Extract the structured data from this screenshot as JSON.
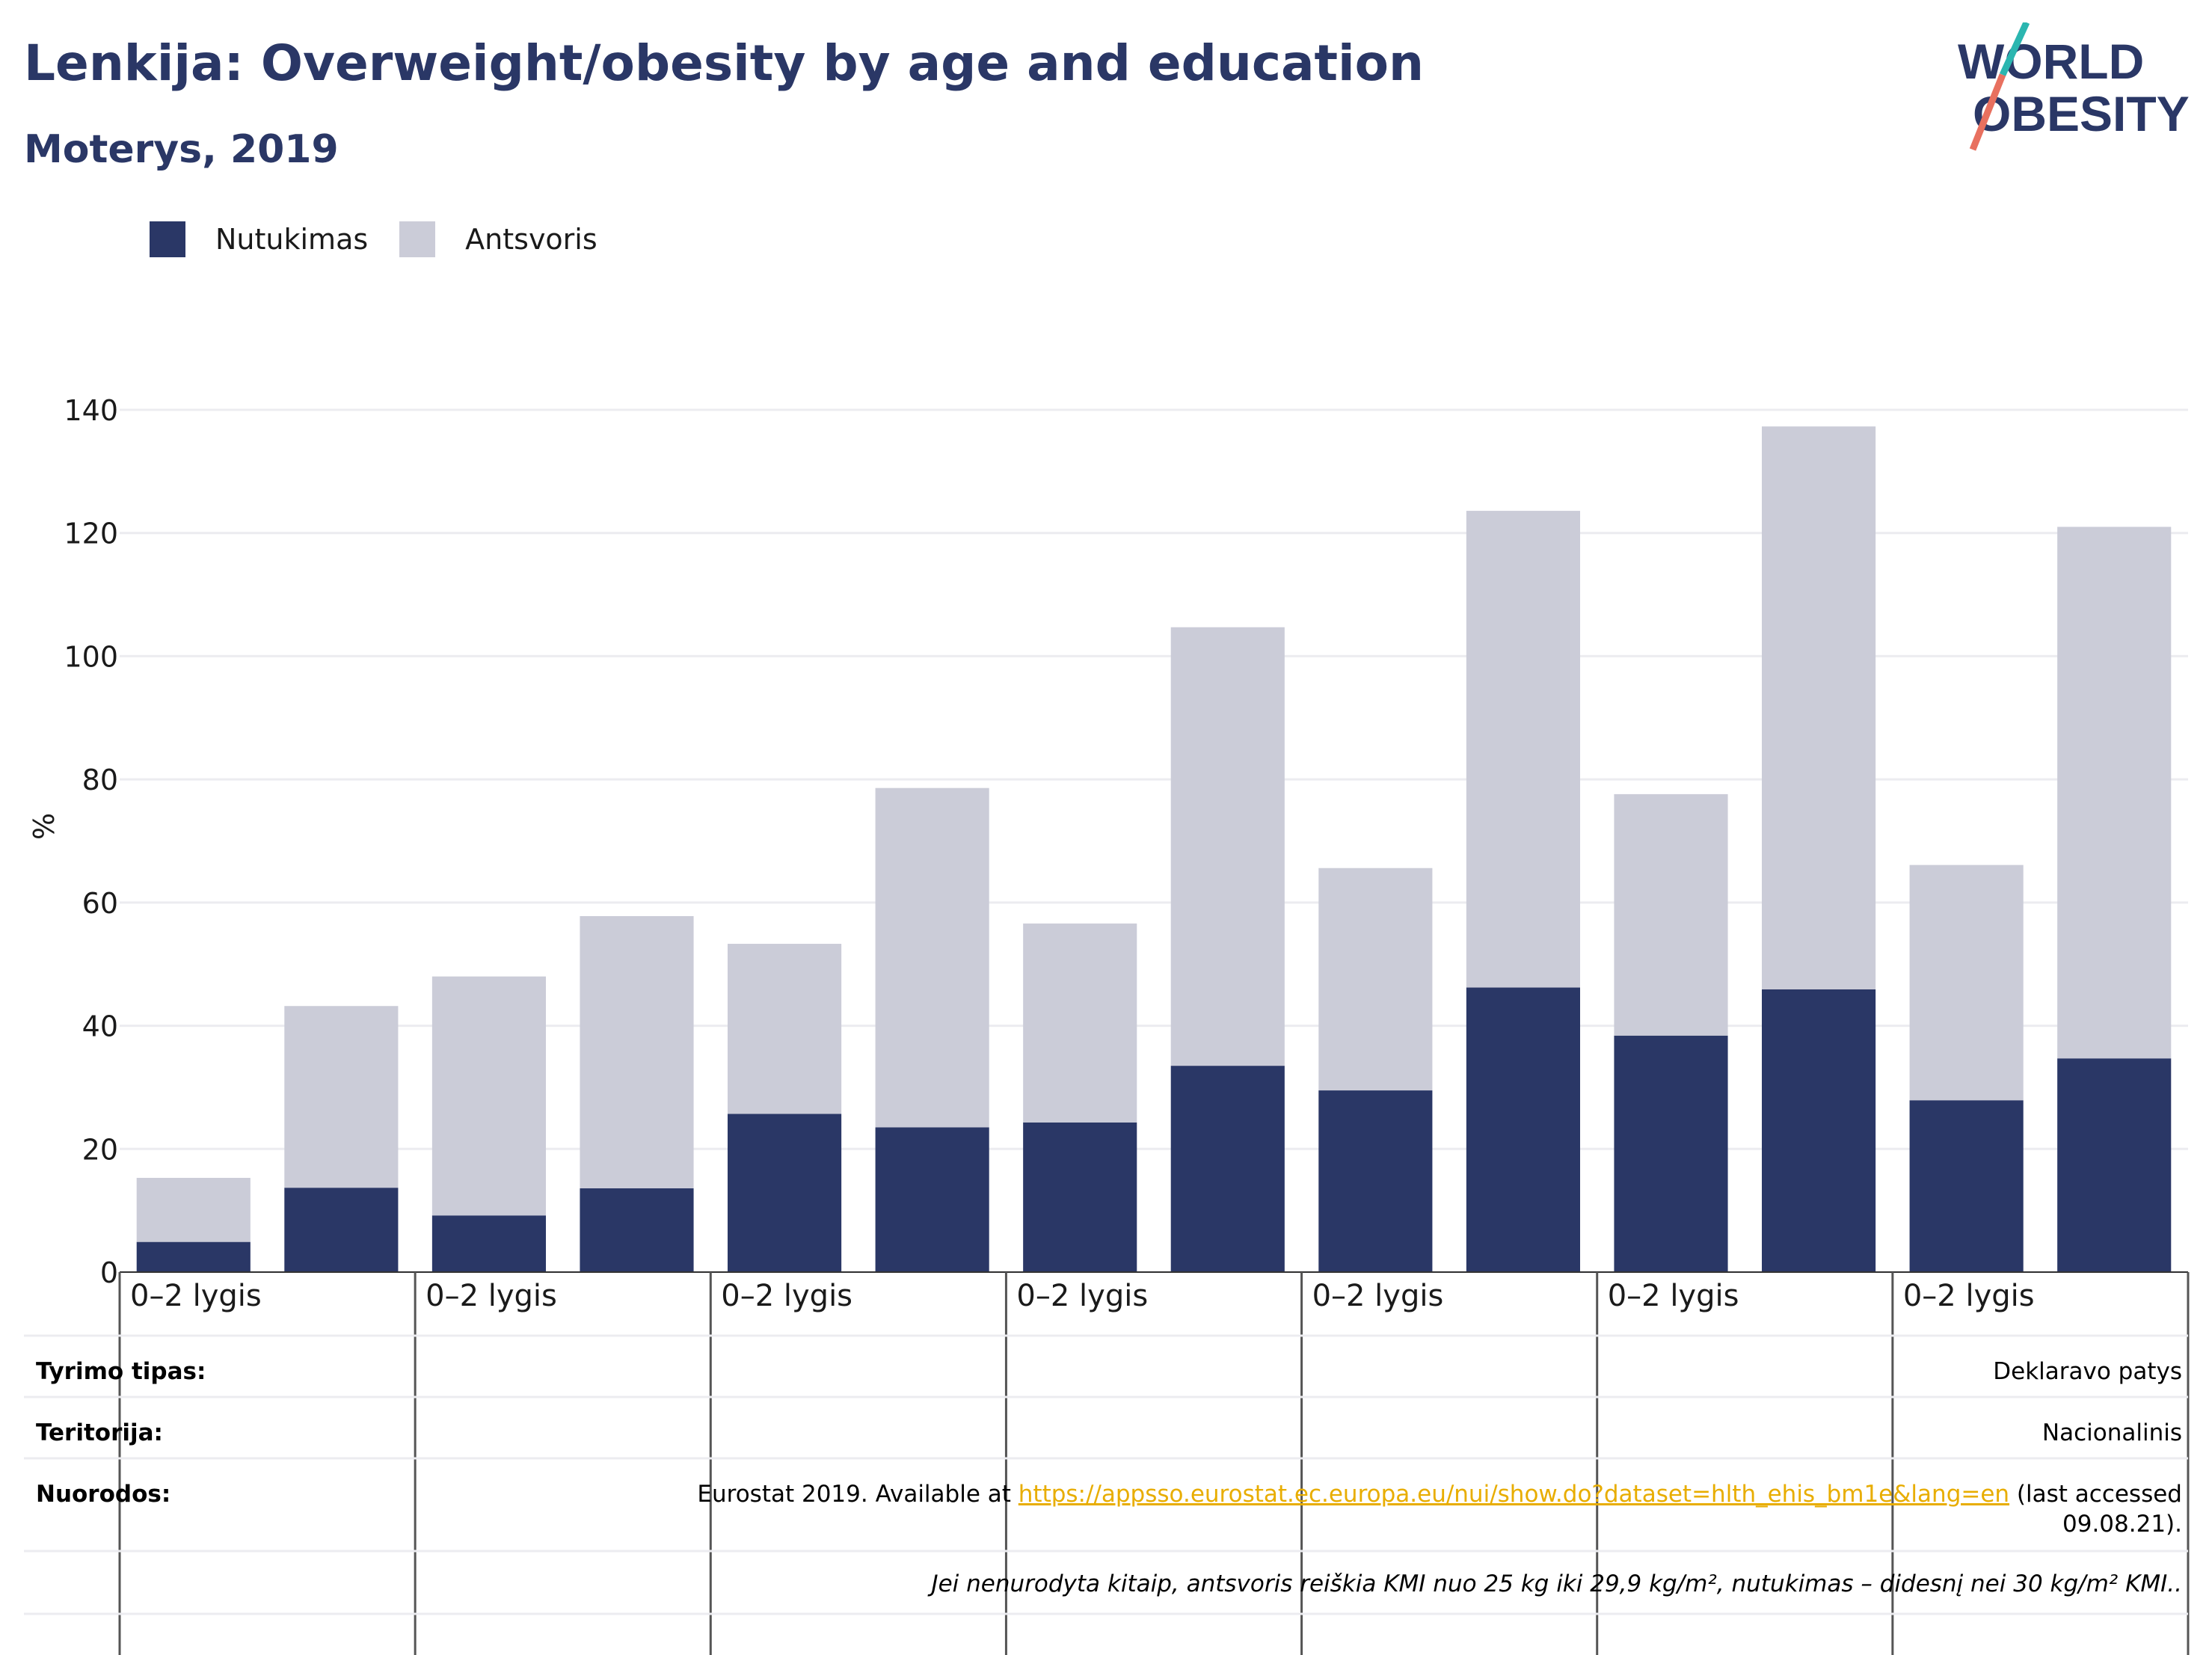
{
  "header": {
    "title": "Lenkija: Overweight/obesity by age and education",
    "subtitle": "Moterys, 2019"
  },
  "logo": {
    "line1": "WORLD",
    "line2": "OBESITY",
    "colors": {
      "text": "#2a3766",
      "slash_teal": "#2bb6b0",
      "slash_coral": "#e8705f"
    }
  },
  "legend": [
    {
      "label": "Nutukimas",
      "color": "#2a3766"
    },
    {
      "label": "Antsvoris",
      "color": "#cbccd8"
    }
  ],
  "chart_data": {
    "type": "bar",
    "stacked": true,
    "ylabel": "%",
    "ylim": [
      0,
      140
    ],
    "yticks": [
      0,
      20,
      40,
      60,
      80,
      100,
      120,
      140
    ],
    "grid": true,
    "legend_position": "top-left",
    "group_labels": [
      "0–2 lygis",
      "0–2 lygis",
      "0–2 lygis",
      "0–2 lygis",
      "0–2 lygis",
      "0–2 lygis",
      "0–2 lygis"
    ],
    "bars_per_group": 2,
    "series": [
      {
        "name": "Nutukimas",
        "color": "#2a3766",
        "values": [
          4.9,
          13.7,
          9.2,
          13.6,
          25.7,
          23.5,
          24.3,
          33.5,
          29.5,
          46.2,
          38.4,
          45.9,
          27.9,
          34.7
        ]
      },
      {
        "name": "Antsvoris",
        "color": "#cbccd8",
        "values": [
          10.4,
          29.5,
          38.8,
          44.2,
          27.6,
          55.1,
          32.3,
          71.2,
          36.1,
          77.4,
          39.2,
          91.4,
          38.2,
          86.3
        ]
      }
    ]
  },
  "info_table": {
    "survey_type": {
      "label": "Tyrimo tipas:",
      "value": "Deklaravo patys"
    },
    "territory": {
      "label": "Teritorija:",
      "value": "Nacionalinis"
    },
    "references": {
      "label": "Nuorodos:",
      "text_before": "Eurostat 2019. Available at ",
      "link": "https://appsso.eurostat.ec.europa.eu/nui/show.do?dataset=hlth_ehis_bm1e&lang=en",
      "text_after": " (last accessed",
      "text_line2": "09.08.21)."
    },
    "note": "Jei nenurodyta kitaip, antsvoris reiškia KMI nuo 25 kg iki 29,9 kg/m², nutukimas – didesnį nei 30 kg/m² KMI.."
  }
}
